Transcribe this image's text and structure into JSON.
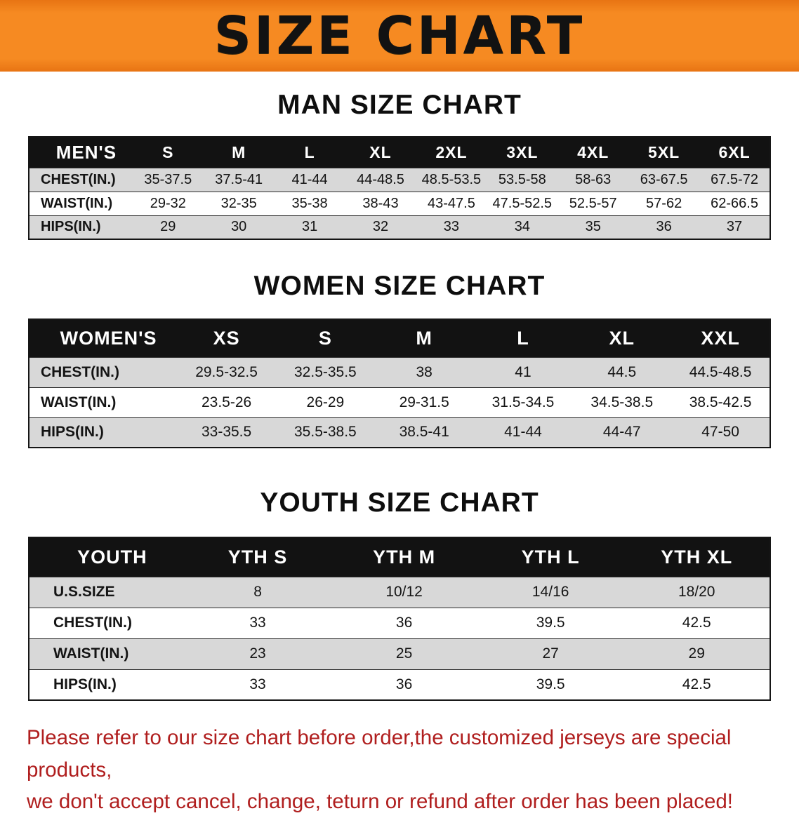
{
  "banner": {
    "title": "SIZE CHART"
  },
  "sections": [
    {
      "heading": "MAN SIZE CHART",
      "table": {
        "header": [
          "MEN'S",
          "S",
          "M",
          "L",
          "XL",
          "2XL",
          "3XL",
          "4XL",
          "5XL",
          "6XL"
        ],
        "rows": [
          [
            "CHEST(IN.)",
            "35-37.5",
            "37.5-41",
            "41-44",
            "44-48.5",
            "48.5-53.5",
            "53.5-58",
            "58-63",
            "63-67.5",
            "67.5-72"
          ],
          [
            "WAIST(IN.)",
            "29-32",
            "32-35",
            "35-38",
            "38-43",
            "43-47.5",
            "47.5-52.5",
            "52.5-57",
            "57-62",
            "62-66.5"
          ],
          [
            "HIPS(IN.)",
            "29",
            "30",
            "31",
            "32",
            "33",
            "34",
            "35",
            "36",
            "37"
          ]
        ]
      }
    },
    {
      "heading": "WOMEN SIZE CHART",
      "table": {
        "header": [
          "WOMEN'S",
          "XS",
          "S",
          "M",
          "L",
          "XL",
          "XXL"
        ],
        "rows": [
          [
            "CHEST(IN.)",
            "29.5-32.5",
            "32.5-35.5",
            "38",
            "41",
            "44.5",
            "44.5-48.5"
          ],
          [
            "WAIST(IN.)",
            "23.5-26",
            "26-29",
            "29-31.5",
            "31.5-34.5",
            "34.5-38.5",
            "38.5-42.5"
          ],
          [
            "HIPS(IN.)",
            "33-35.5",
            "35.5-38.5",
            "38.5-41",
            "41-44",
            "44-47",
            "47-50"
          ]
        ]
      }
    },
    {
      "heading": "YOUTH SIZE CHART",
      "table": {
        "header": [
          "YOUTH",
          "YTH S",
          "YTH M",
          "YTH L",
          "YTH XL"
        ],
        "rows": [
          [
            "U.S.SIZE",
            "8",
            "10/12",
            "14/16",
            "18/20"
          ],
          [
            "CHEST(IN.)",
            "33",
            "36",
            "39.5",
            "42.5"
          ],
          [
            "WAIST(IN.)",
            "23",
            "25",
            "27",
            "29"
          ],
          [
            "HIPS(IN.)",
            "33",
            "36",
            "39.5",
            "42.5"
          ]
        ]
      }
    }
  ],
  "footer": {
    "line1": "Please refer to our size chart before order,the customized jerseys are special products,",
    "line2": "we don't accept cancel, change, teturn or refund after order has been placed!"
  },
  "colors": {
    "banner_bg": "#F68A22",
    "table_header_bg": "#121212",
    "row_stripe": "#D8D8D8",
    "footer_text": "#B01E1E"
  }
}
